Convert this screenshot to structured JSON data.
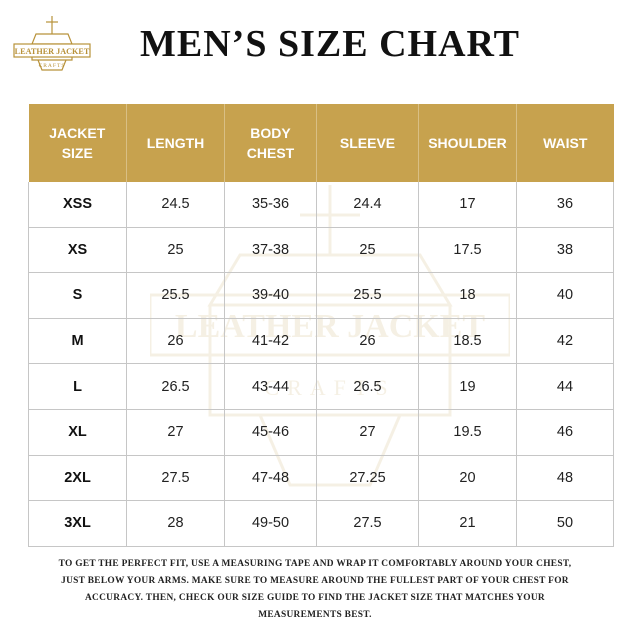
{
  "logo": {
    "line1": "LEATHER JACKET",
    "line2": "CRAFTS"
  },
  "title": "MEN’S SIZE CHART",
  "headers": [
    {
      "line1": "JACKET",
      "line2": "SIZE"
    },
    {
      "line1": "LENGTH",
      "line2": ""
    },
    {
      "line1": "BODY",
      "line2": "CHEST"
    },
    {
      "line1": "SLEEVE",
      "line2": ""
    },
    {
      "line1": "SHOULDER",
      "line2": ""
    },
    {
      "line1": "WAIST",
      "line2": ""
    }
  ],
  "rows": [
    [
      "XSS",
      "24.5",
      "35-36",
      "24.4",
      "17",
      "36"
    ],
    [
      "XS",
      "25",
      "37-38",
      "25",
      "17.5",
      "38"
    ],
    [
      "S",
      "25.5",
      "39-40",
      "25.5",
      "18",
      "40"
    ],
    [
      "M",
      "26",
      "41-42",
      "26",
      "18.5",
      "42"
    ],
    [
      "L",
      "26.5",
      "43-44",
      "26.5",
      "19",
      "44"
    ],
    [
      "XL",
      "27",
      "45-46",
      "27",
      "19.5",
      "46"
    ],
    [
      "2XL",
      "27.5",
      "47-48",
      "27.25",
      "20",
      "48"
    ],
    [
      "3XL",
      "28",
      "49-50",
      "27.5",
      "21",
      "50"
    ]
  ],
  "footer": {
    "line1": "TO GET THE PERFECT FIT, USE A MEASURING TAPE AND WRAP IT COMFORTABLY AROUND YOUR CHEST,",
    "line2": "JUST BELOW YOUR ARMS. MAKE SURE TO MEASURE AROUND THE FULLEST PART OF YOUR CHEST FOR",
    "line3": "ACCURACY. THEN, CHECK OUR SIZE GUIDE TO FIND THE JACKET SIZE THAT MATCHES YOUR",
    "line4": "MEASUREMENTS BEST."
  },
  "colors": {
    "header_gold": "#c7a24e",
    "logo_gold": "#b8923a"
  },
  "watermark": {
    "line1": "LEATHER JACKET",
    "line2": "CRAFTS"
  }
}
